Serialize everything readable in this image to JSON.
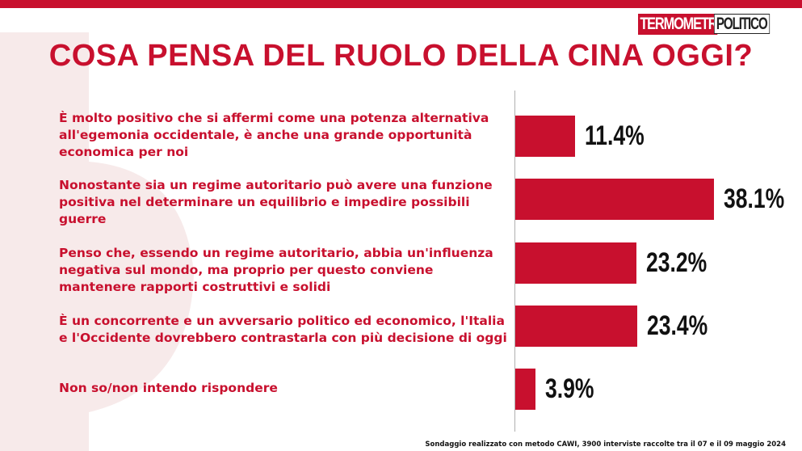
{
  "brand": {
    "part1": "TERMOMETRO",
    "part2": "POLITICO"
  },
  "footnote": "Sondaggio realizzato con metodo CAWI, 3900 interviste raccolte tra il 07 e il 09 maggio 2024",
  "colors": {
    "accent": "#c8102e",
    "value_text": "#111111"
  },
  "chart_data": {
    "type": "bar",
    "orientation": "horizontal",
    "title": "COSA PENSA DEL RUOLO DELLA CINA OGGI?",
    "categories": [
      "È molto positivo che si affermi come una potenza alternativa all'egemonia occidentale, è anche una grande opportunità economica per noi",
      "Nonostante sia un regime autoritario può avere una funzione positiva nel determinare un equilibrio e impedire possibili guerre",
      "Penso che, essendo un regime autoritario, abbia un'influenza negativa sul mondo, ma proprio per questo conviene mantenere rapporti costruttivi e solidi",
      "È un concorrente e un avversario politico ed economico, l'Italia e l'Occidente dovrebbero contrastarla con più decisione di oggi",
      "Non so/non intendo rispondere"
    ],
    "values": [
      11.4,
      38.1,
      23.2,
      23.4,
      3.9
    ],
    "value_labels": [
      "11.4%",
      "38.1%",
      "23.2%",
      "23.4%",
      "3.9%"
    ],
    "xlim": [
      0,
      38.1
    ],
    "grid": false,
    "legend": "none"
  }
}
